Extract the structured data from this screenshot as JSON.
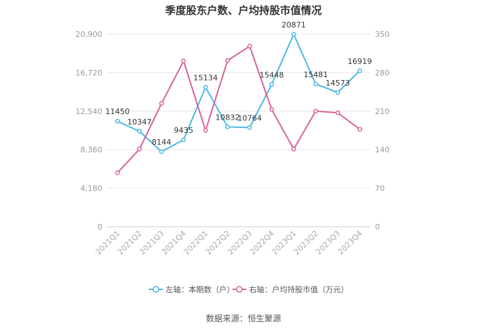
{
  "chart_data": {
    "type": "line",
    "title": "季度股东户数、户均持股市值情况",
    "categories": [
      "2021Q1",
      "2021Q2",
      "2021Q3",
      "2021Q4",
      "2022Q1",
      "2022Q2",
      "2022Q3",
      "2022Q4",
      "2023Q1",
      "2023Q2",
      "2023Q3",
      "2023Q4"
    ],
    "left_axis": {
      "min": 0,
      "max": 20900,
      "ticks": [
        "0",
        "4,180",
        "8,360",
        "12,540",
        "16,720",
        "20,900"
      ]
    },
    "right_axis": {
      "min": 0,
      "max": 350,
      "ticks": [
        "0",
        "70",
        "140",
        "210",
        "280",
        "350"
      ]
    },
    "series": [
      {
        "name": "左轴：本期数（户）",
        "axis": "left",
        "color": "#4cb8e6",
        "values": [
          11450,
          10347,
          8144,
          9435,
          15134,
          10832,
          10764,
          15448,
          20871,
          15481,
          14573,
          16919
        ],
        "labels": [
          "11450",
          "10347",
          "8144",
          "9435",
          "15134",
          "10832",
          "10764",
          "15448",
          "20871",
          "15481",
          "14573",
          "16919"
        ]
      },
      {
        "name": "右轴：户均持股市值（万元）",
        "axis": "right",
        "color": "#d5639d",
        "values": [
          98,
          141,
          224,
          301,
          175,
          302,
          328,
          213,
          141,
          210,
          207,
          177
        ]
      }
    ],
    "grid": true,
    "legend": "bottom"
  },
  "source": "数据来源：恒生聚源"
}
